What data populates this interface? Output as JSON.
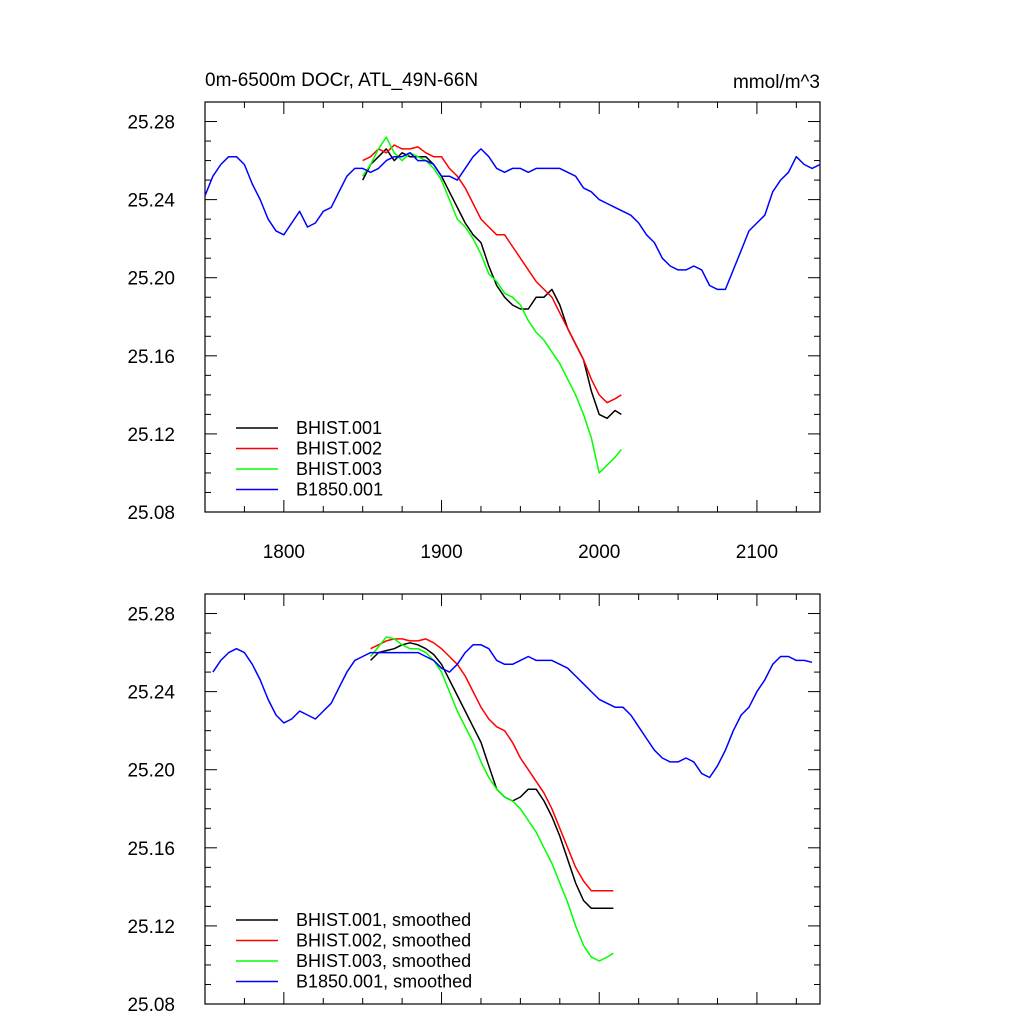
{
  "chart_data": [
    {
      "type": "line",
      "title_left": "0m-6500m DOCr, ATL_49N-66N",
      "title_right": "mmol/m^3",
      "xlim": [
        1750,
        2140
      ],
      "ylim": [
        25.08,
        25.29
      ],
      "xticks": [
        1800,
        1900,
        2000,
        2100
      ],
      "yticks": [
        25.08,
        25.12,
        25.16,
        25.2,
        25.24,
        25.28
      ],
      "xtick_labels": [
        "1800",
        "1900",
        "2000",
        "2100"
      ],
      "ytick_labels": [
        "25.08",
        "25.12",
        "25.16",
        "25.20",
        "25.24",
        "25.28"
      ],
      "legend_position": "bottom-left",
      "series": [
        {
          "name": "BHIST.001",
          "color": "#000000",
          "x": [
            1850,
            1855,
            1860,
            1865,
            1870,
            1875,
            1880,
            1885,
            1890,
            1895,
            1900,
            1905,
            1910,
            1915,
            1920,
            1925,
            1930,
            1935,
            1940,
            1945,
            1950,
            1955,
            1960,
            1965,
            1970,
            1975,
            1980,
            1985,
            1990,
            1995,
            2000,
            2005,
            2010,
            2014
          ],
          "y": [
            25.25,
            25.258,
            25.262,
            25.266,
            25.26,
            25.264,
            25.262,
            25.262,
            25.262,
            25.258,
            25.252,
            25.244,
            25.236,
            25.228,
            25.222,
            25.218,
            25.206,
            25.196,
            25.19,
            25.186,
            25.184,
            25.184,
            25.19,
            25.19,
            25.194,
            25.186,
            25.174,
            25.166,
            25.158,
            25.142,
            25.13,
            25.128,
            25.132,
            25.13
          ]
        },
        {
          "name": "BHIST.002",
          "color": "#ff0000",
          "x": [
            1850,
            1855,
            1860,
            1865,
            1870,
            1875,
            1880,
            1885,
            1890,
            1895,
            1900,
            1905,
            1910,
            1915,
            1920,
            1925,
            1930,
            1935,
            1940,
            1945,
            1950,
            1955,
            1960,
            1965,
            1970,
            1975,
            1980,
            1985,
            1990,
            1995,
            2000,
            2005,
            2010,
            2014
          ],
          "y": [
            25.26,
            25.262,
            25.266,
            25.264,
            25.268,
            25.266,
            25.266,
            25.267,
            25.264,
            25.262,
            25.262,
            25.256,
            25.252,
            25.246,
            25.238,
            25.23,
            25.226,
            25.222,
            25.222,
            25.216,
            25.21,
            25.204,
            25.198,
            25.194,
            25.19,
            25.182,
            25.174,
            25.166,
            25.158,
            25.148,
            25.14,
            25.136,
            25.138,
            25.14
          ]
        },
        {
          "name": "BHIST.003",
          "color": "#00ff00",
          "x": [
            1850,
            1855,
            1860,
            1865,
            1870,
            1875,
            1880,
            1885,
            1890,
            1895,
            1900,
            1905,
            1910,
            1915,
            1920,
            1925,
            1930,
            1935,
            1940,
            1945,
            1950,
            1955,
            1960,
            1965,
            1970,
            1975,
            1980,
            1985,
            1990,
            1995,
            2000,
            2005,
            2010,
            2014
          ],
          "y": [
            25.252,
            25.258,
            25.266,
            25.272,
            25.264,
            25.26,
            25.264,
            25.262,
            25.26,
            25.256,
            25.25,
            25.24,
            25.23,
            25.226,
            25.22,
            25.212,
            25.202,
            25.198,
            25.192,
            25.19,
            25.186,
            25.178,
            25.172,
            25.168,
            25.162,
            25.156,
            25.148,
            25.14,
            25.13,
            25.118,
            25.1,
            25.104,
            25.108,
            25.112
          ]
        },
        {
          "name": "B1850.001",
          "color": "#0000ff",
          "x": [
            1750,
            1755,
            1760,
            1765,
            1770,
            1775,
            1780,
            1785,
            1790,
            1795,
            1800,
            1805,
            1810,
            1815,
            1820,
            1825,
            1830,
            1835,
            1840,
            1845,
            1850,
            1855,
            1860,
            1865,
            1870,
            1875,
            1880,
            1885,
            1890,
            1895,
            1900,
            1905,
            1910,
            1915,
            1920,
            1925,
            1930,
            1935,
            1940,
            1945,
            1950,
            1955,
            1960,
            1965,
            1970,
            1975,
            1980,
            1985,
            1990,
            1995,
            2000,
            2005,
            2010,
            2015,
            2020,
            2025,
            2030,
            2035,
            2040,
            2045,
            2050,
            2055,
            2060,
            2065,
            2070,
            2075,
            2080,
            2085,
            2090,
            2095,
            2100,
            2105,
            2110,
            2115,
            2120,
            2125,
            2130,
            2135,
            2140
          ],
          "y": [
            25.242,
            25.252,
            25.258,
            25.262,
            25.262,
            25.258,
            25.248,
            25.24,
            25.23,
            25.224,
            25.222,
            25.228,
            25.234,
            25.226,
            25.228,
            25.234,
            25.236,
            25.244,
            25.252,
            25.256,
            25.256,
            25.254,
            25.256,
            25.26,
            25.262,
            25.262,
            25.264,
            25.26,
            25.26,
            25.258,
            25.252,
            25.252,
            25.25,
            25.256,
            25.262,
            25.266,
            25.262,
            25.256,
            25.254,
            25.256,
            25.256,
            25.254,
            25.256,
            25.256,
            25.256,
            25.256,
            25.254,
            25.252,
            25.246,
            25.244,
            25.24,
            25.238,
            25.236,
            25.234,
            25.232,
            25.228,
            25.222,
            25.218,
            25.21,
            25.206,
            25.204,
            25.204,
            25.206,
            25.204,
            25.196,
            25.194,
            25.194,
            25.204,
            25.214,
            25.224,
            25.228,
            25.232,
            25.244,
            25.25,
            25.254,
            25.262,
            25.258,
            25.256,
            25.258
          ]
        }
      ]
    },
    {
      "type": "line",
      "title_left": "",
      "title_right": "",
      "xlim": [
        1750,
        2140
      ],
      "ylim": [
        25.08,
        25.29
      ],
      "xticks": [
        1800,
        1900,
        2000,
        2100
      ],
      "yticks": [
        25.08,
        25.12,
        25.16,
        25.2,
        25.24,
        25.28
      ],
      "xtick_labels": [],
      "ytick_labels": [
        "25.08",
        "25.12",
        "25.16",
        "25.20",
        "25.24",
        "25.28"
      ],
      "legend_position": "bottom-left",
      "series": [
        {
          "name": "BHIST.001, smoothed",
          "color": "#000000",
          "x": [
            1855,
            1860,
            1865,
            1870,
            1875,
            1880,
            1885,
            1890,
            1895,
            1900,
            1905,
            1910,
            1915,
            1920,
            1925,
            1930,
            1935,
            1940,
            1945,
            1950,
            1955,
            1960,
            1965,
            1970,
            1975,
            1980,
            1985,
            1990,
            1995,
            2000,
            2005,
            2009
          ],
          "y": [
            25.256,
            25.26,
            25.261,
            25.262,
            25.264,
            25.265,
            25.264,
            25.262,
            25.259,
            25.254,
            25.246,
            25.238,
            25.23,
            25.222,
            25.214,
            25.202,
            25.19,
            25.186,
            25.184,
            25.186,
            25.19,
            25.19,
            25.184,
            25.176,
            25.166,
            25.154,
            25.142,
            25.133,
            25.129,
            25.129,
            25.129,
            25.129
          ]
        },
        {
          "name": "BHIST.002, smoothed",
          "color": "#ff0000",
          "x": [
            1855,
            1860,
            1865,
            1870,
            1875,
            1880,
            1885,
            1890,
            1895,
            1900,
            1905,
            1910,
            1915,
            1920,
            1925,
            1930,
            1935,
            1940,
            1945,
            1950,
            1955,
            1960,
            1965,
            1970,
            1975,
            1980,
            1985,
            1990,
            1995,
            2000,
            2005,
            2009
          ],
          "y": [
            25.262,
            25.264,
            25.266,
            25.267,
            25.267,
            25.266,
            25.266,
            25.267,
            25.265,
            25.262,
            25.258,
            25.254,
            25.248,
            25.24,
            25.232,
            25.226,
            25.222,
            25.22,
            25.214,
            25.206,
            25.2,
            25.194,
            25.188,
            25.18,
            25.17,
            25.16,
            25.15,
            25.143,
            25.138,
            25.138,
            25.138,
            25.138
          ]
        },
        {
          "name": "BHIST.003, smoothed",
          "color": "#00ff00",
          "x": [
            1855,
            1860,
            1865,
            1870,
            1875,
            1880,
            1885,
            1890,
            1895,
            1900,
            1905,
            1910,
            1915,
            1920,
            1925,
            1930,
            1935,
            1940,
            1945,
            1950,
            1955,
            1960,
            1965,
            1970,
            1975,
            1980,
            1985,
            1990,
            1995,
            2000,
            2005,
            2009
          ],
          "y": [
            25.258,
            25.263,
            25.268,
            25.267,
            25.264,
            25.262,
            25.262,
            25.26,
            25.256,
            25.25,
            25.24,
            25.23,
            25.222,
            25.214,
            25.204,
            25.196,
            25.19,
            25.186,
            25.184,
            25.18,
            25.174,
            25.168,
            25.16,
            25.152,
            25.142,
            25.132,
            25.12,
            25.11,
            25.104,
            25.102,
            25.104,
            25.106
          ]
        },
        {
          "name": "B1850.001, smoothed",
          "color": "#0000ff",
          "x": [
            1755,
            1760,
            1765,
            1770,
            1775,
            1780,
            1785,
            1790,
            1795,
            1800,
            1805,
            1810,
            1815,
            1820,
            1825,
            1830,
            1835,
            1840,
            1845,
            1850,
            1855,
            1860,
            1865,
            1870,
            1875,
            1880,
            1885,
            1890,
            1895,
            1900,
            1905,
            1910,
            1915,
            1920,
            1925,
            1930,
            1935,
            1940,
            1945,
            1950,
            1955,
            1960,
            1965,
            1970,
            1975,
            1980,
            1985,
            1990,
            1995,
            2000,
            2005,
            2010,
            2015,
            2020,
            2025,
            2030,
            2035,
            2040,
            2045,
            2050,
            2055,
            2060,
            2065,
            2070,
            2075,
            2080,
            2085,
            2090,
            2095,
            2100,
            2105,
            2110,
            2115,
            2120,
            2125,
            2130,
            2135
          ],
          "y": [
            25.25,
            25.256,
            25.26,
            25.262,
            25.26,
            25.254,
            25.246,
            25.236,
            25.228,
            25.224,
            25.226,
            25.23,
            25.228,
            25.226,
            25.23,
            25.234,
            25.242,
            25.25,
            25.256,
            25.258,
            25.26,
            25.26,
            25.26,
            25.26,
            25.26,
            25.26,
            25.26,
            25.258,
            25.256,
            25.252,
            25.25,
            25.254,
            25.26,
            25.264,
            25.264,
            25.262,
            25.256,
            25.254,
            25.254,
            25.256,
            25.258,
            25.256,
            25.256,
            25.256,
            25.254,
            25.252,
            25.248,
            25.244,
            25.24,
            25.236,
            25.234,
            25.232,
            25.232,
            25.228,
            25.222,
            25.216,
            25.21,
            25.206,
            25.204,
            25.204,
            25.206,
            25.204,
            25.198,
            25.196,
            25.202,
            25.21,
            25.22,
            25.228,
            25.232,
            25.24,
            25.246,
            25.254,
            25.258,
            25.258,
            25.256,
            25.256,
            25.255
          ]
        }
      ]
    }
  ]
}
